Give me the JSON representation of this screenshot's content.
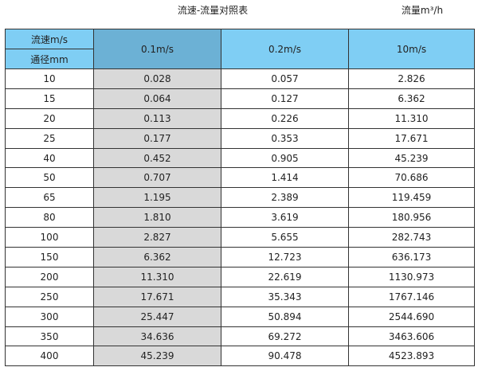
{
  "title": "流速-流量对照表",
  "unit": "流量m³/h",
  "header": {
    "velocity_label": "流速m/s",
    "diameter_label": "通径mm",
    "columns": [
      "0.1m/s",
      "0.2m/s",
      "10m/s"
    ]
  },
  "colors": {
    "header": "#7fcef4",
    "header_selected": "#6cb1d5",
    "selected_column": "#d9d9d9"
  },
  "rows": [
    [
      "10",
      "0.028",
      "0.057",
      "2.826"
    ],
    [
      "15",
      "0.064",
      "0.127",
      "6.362"
    ],
    [
      "20",
      "0.113",
      "0.226",
      "11.310"
    ],
    [
      "25",
      "0.177",
      "0.353",
      "17.671"
    ],
    [
      "40",
      "0.452",
      "0.905",
      "45.239"
    ],
    [
      "50",
      "0.707",
      "1.414",
      "70.686"
    ],
    [
      "65",
      "1.195",
      "2.389",
      "119.459"
    ],
    [
      "80",
      "1.810",
      "3.619",
      "180.956"
    ],
    [
      "100",
      "2.827",
      "5.655",
      "282.743"
    ],
    [
      "150",
      "6.362",
      "12.723",
      "636.173"
    ],
    [
      "200",
      "11.310",
      "22.619",
      "1130.973"
    ],
    [
      "250",
      "17.671",
      "35.343",
      "1767.146"
    ],
    [
      "300",
      "25.447",
      "50.894",
      "2544.690"
    ],
    [
      "350",
      "34.636",
      "69.272",
      "3463.606"
    ],
    [
      "400",
      "45.239",
      "90.478",
      "4523.893"
    ]
  ]
}
